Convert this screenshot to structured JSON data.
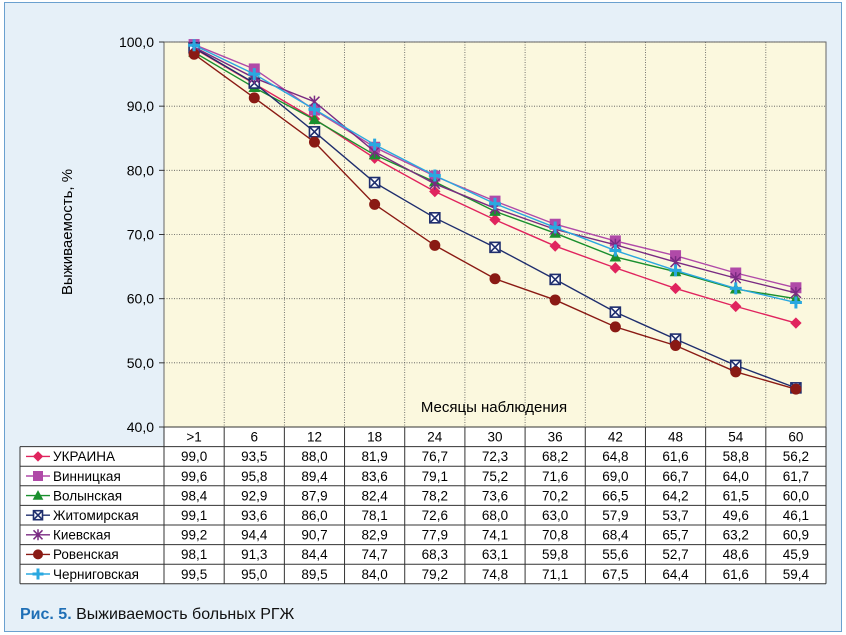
{
  "caption": {
    "label": "Рис. 5.",
    "text": "Выживаемость больных РГЖ"
  },
  "chart_data": {
    "type": "line",
    "xlabel": "Месяцы наблюдения",
    "ylabel": "Выживаемость, %",
    "ylim": [
      40,
      100
    ],
    "yticks": [
      "40,0",
      "50,0",
      "60,0",
      "70,0",
      "80,0",
      "90,0",
      "100,0"
    ],
    "ytick_values": [
      40,
      50,
      60,
      70,
      80,
      90,
      100
    ],
    "categories": [
      ">1",
      "6",
      "12",
      "18",
      "24",
      "30",
      "36",
      "42",
      "48",
      "54",
      "60"
    ],
    "grid": true,
    "legend_placement": "table-below",
    "series": [
      {
        "name": "УКРАИНА",
        "color": "#e0245e",
        "marker": "diamond",
        "values": [
          99.0,
          93.5,
          88.0,
          81.9,
          76.7,
          72.3,
          68.2,
          64.8,
          61.6,
          58.8,
          56.2
        ],
        "labels": [
          "99,0",
          "93,5",
          "88,0",
          "81,9",
          "76,7",
          "72,3",
          "68,2",
          "64,8",
          "61,6",
          "58,8",
          "56,2"
        ]
      },
      {
        "name": "Винницкая",
        "color": "#b04aa8",
        "marker": "square",
        "values": [
          99.6,
          95.8,
          89.4,
          83.6,
          79.1,
          75.2,
          71.6,
          69.0,
          66.7,
          64.0,
          61.7
        ],
        "labels": [
          "99,6",
          "95,8",
          "89,4",
          "83,6",
          "79,1",
          "75,2",
          "71,6",
          "69,0",
          "66,7",
          "64,0",
          "61,7"
        ]
      },
      {
        "name": "Волынская",
        "color": "#1a8f2e",
        "marker": "triangle",
        "values": [
          98.4,
          92.9,
          87.9,
          82.4,
          78.2,
          73.6,
          70.2,
          66.5,
          64.2,
          61.5,
          60.0
        ],
        "labels": [
          "98,4",
          "92,9",
          "87,9",
          "82,4",
          "78,2",
          "73,6",
          "70,2",
          "66,5",
          "64,2",
          "61,5",
          "60,0"
        ]
      },
      {
        "name": "Житомирская",
        "color": "#1f2e6e",
        "marker": "xsquare",
        "values": [
          99.1,
          93.6,
          86.0,
          78.1,
          72.6,
          68.0,
          63.0,
          57.9,
          53.7,
          49.6,
          46.1
        ],
        "labels": [
          "99,1",
          "93,6",
          "86,0",
          "78,1",
          "72,6",
          "68,0",
          "63,0",
          "57,9",
          "53,7",
          "49,6",
          "46,1"
        ]
      },
      {
        "name": "Киевская",
        "color": "#7a2a82",
        "marker": "star",
        "values": [
          99.2,
          94.4,
          90.7,
          82.9,
          77.9,
          74.1,
          70.8,
          68.4,
          65.7,
          63.2,
          60.9
        ],
        "labels": [
          "99,2",
          "94,4",
          "90,7",
          "82,9",
          "77,9",
          "74,1",
          "70,8",
          "68,4",
          "65,7",
          "63,2",
          "60,9"
        ]
      },
      {
        "name": "Ровенская",
        "color": "#8a1a14",
        "marker": "circle",
        "values": [
          98.1,
          91.3,
          84.4,
          74.7,
          68.3,
          63.1,
          59.8,
          55.6,
          52.7,
          48.6,
          45.9
        ],
        "labels": [
          "98,1",
          "91,3",
          "84,4",
          "74,7",
          "68,3",
          "63,1",
          "59,8",
          "55,6",
          "52,7",
          "48,6",
          "45,9"
        ]
      },
      {
        "name": "Черниговская",
        "color": "#2aa8e0",
        "marker": "plus",
        "values": [
          99.5,
          95.0,
          89.5,
          84.0,
          79.2,
          74.8,
          71.1,
          67.5,
          64.4,
          61.6,
          59.4
        ],
        "labels": [
          "99,5",
          "95,0",
          "89,5",
          "84,0",
          "79,2",
          "74,8",
          "71,1",
          "67,5",
          "64,4",
          "61,6",
          "59,4"
        ]
      }
    ]
  }
}
